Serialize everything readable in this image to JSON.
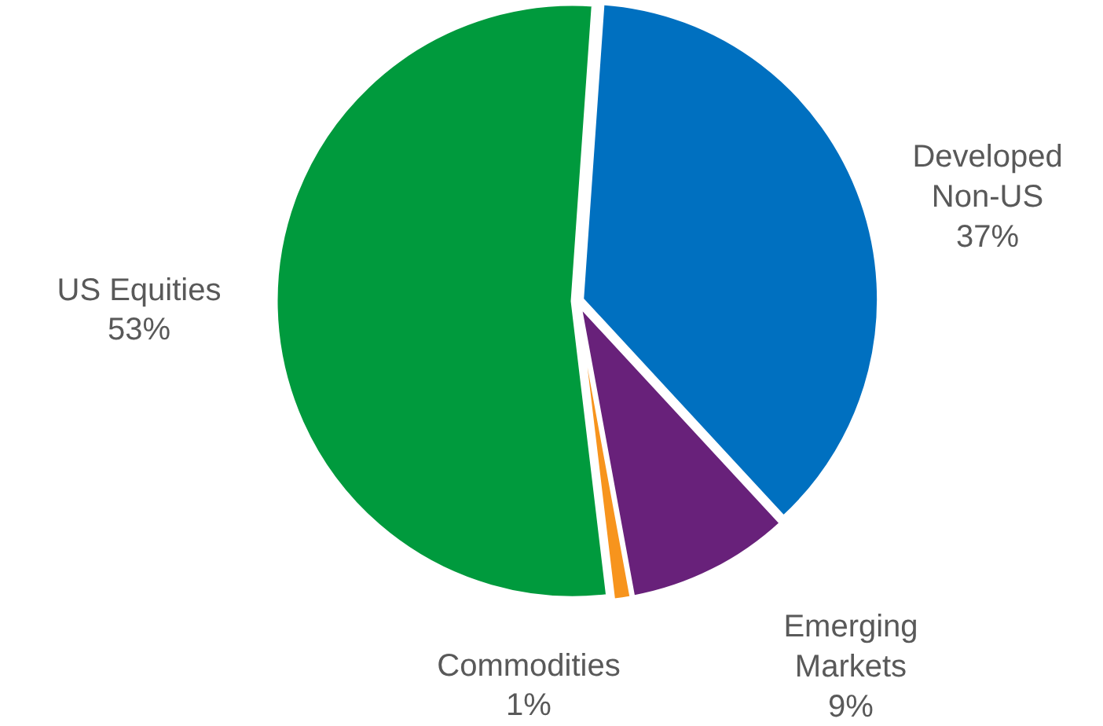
{
  "chart_data": {
    "type": "pie",
    "categories": [
      "Developed Non-US",
      "Emerging Markets",
      "Commodities",
      "US Equities"
    ],
    "values": [
      37,
      9,
      1,
      53
    ],
    "colors": [
      "#0070c0",
      "#68217a",
      "#f7941d",
      "#009a3d"
    ],
    "value_labels": [
      "37%",
      "9%",
      "1%",
      "53%"
    ]
  }
}
